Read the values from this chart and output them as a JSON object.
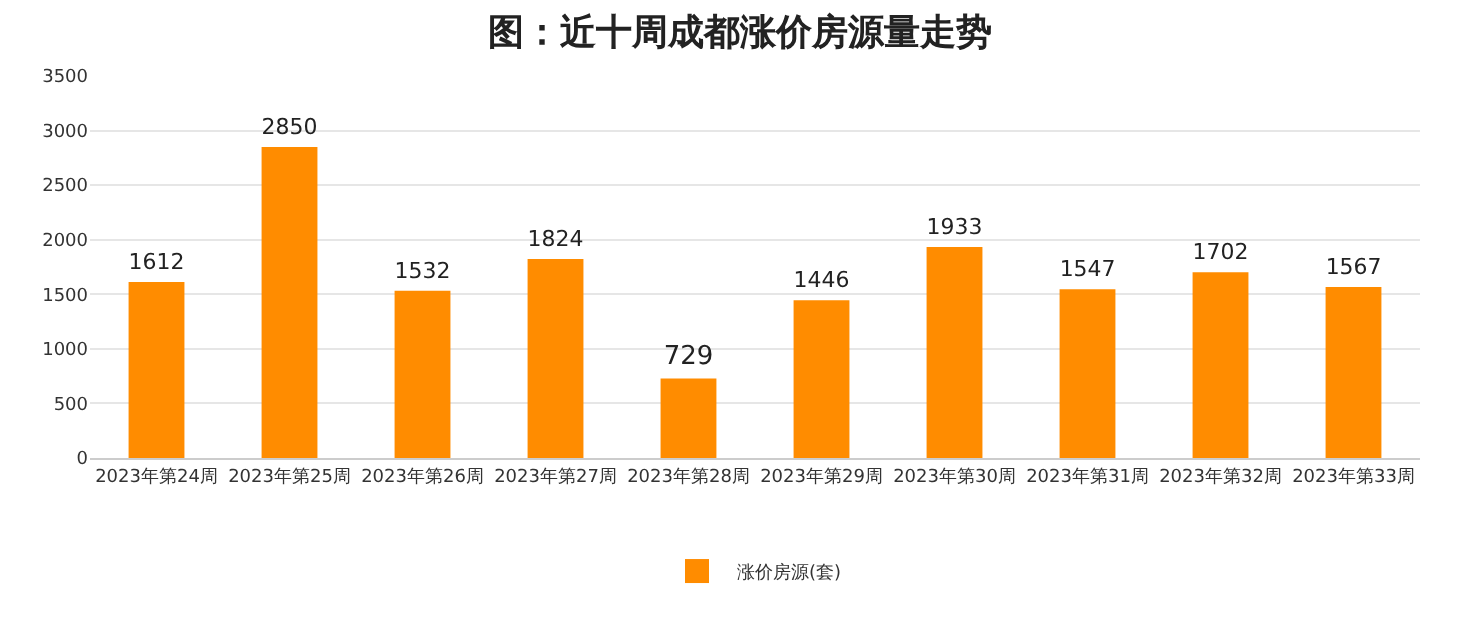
{
  "chart_data": {
    "type": "bar",
    "title": "图：近十周成都涨价房源量走势",
    "categories": [
      "2023年第24周",
      "2023年第25周",
      "2023年第26周",
      "2023年第27周",
      "2023年第28周",
      "2023年第29周",
      "2023年第30周",
      "2023年第31周",
      "2023年第32周",
      "2023年第33周"
    ],
    "series": [
      {
        "name": "涨价房源(套)",
        "color": "#ff8c00",
        "values": [
          1612,
          2850,
          1532,
          1824,
          729,
          1446,
          1933,
          1547,
          1702,
          1567
        ]
      }
    ],
    "ylim": [
      0,
      3500
    ],
    "yticks": [
      0,
      500,
      1000,
      1500,
      2000,
      2500,
      3000,
      3500
    ],
    "grid": "y",
    "legend": "bottom",
    "data_labels": true
  }
}
